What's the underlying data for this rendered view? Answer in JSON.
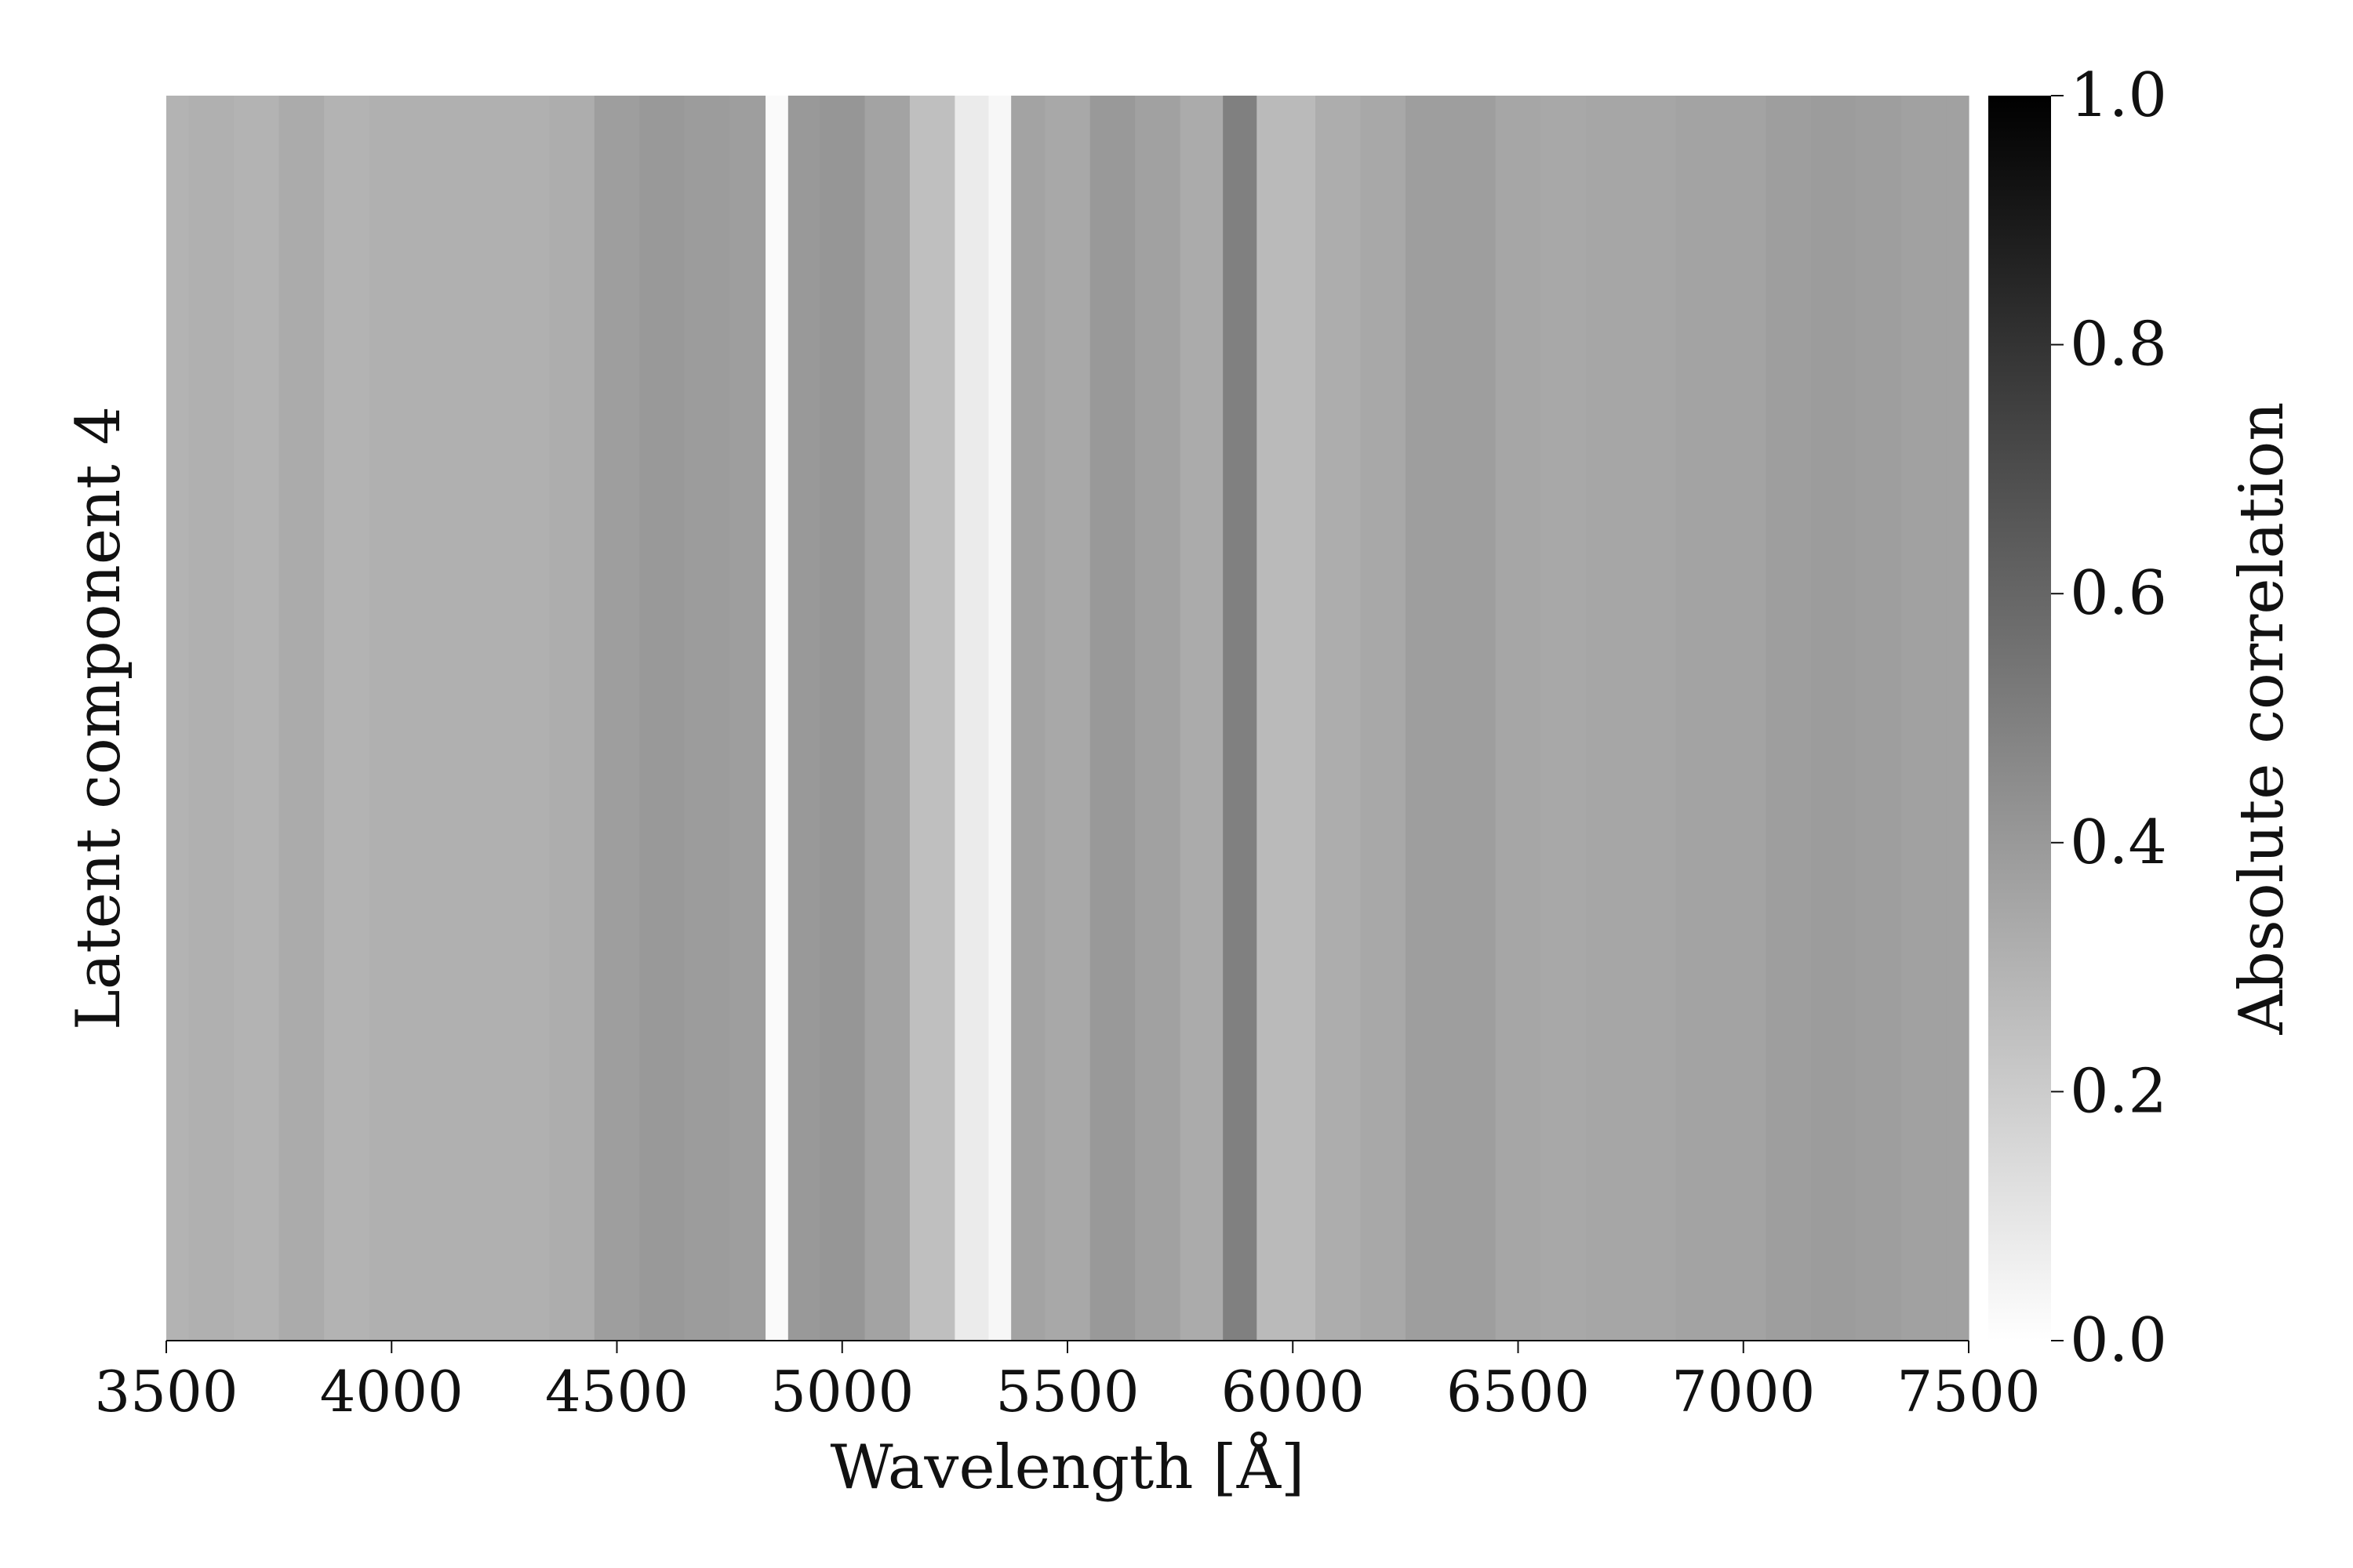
{
  "chart_data": {
    "type": "heatmap",
    "xlabel": "Wavelength [Å]",
    "ylabel": "Latent component 4",
    "xlim": [
      3500,
      7500
    ],
    "x_ticks": [
      "3500",
      "4000",
      "4500",
      "5000",
      "5500",
      "6000",
      "6500",
      "7000",
      "7500"
    ],
    "colorbar": {
      "label": "Absolute correlation",
      "range": [
        0.0,
        1.0
      ],
      "ticks": [
        "0.0",
        "0.2",
        "0.4",
        "0.6",
        "0.8",
        "1.0"
      ],
      "colormap": "Greys",
      "low_color": "#ffffff",
      "high_color": "#000000"
    },
    "series": [
      {
        "name": "Latent component 4",
        "wavelength": [
          3500,
          3600,
          3700,
          3800,
          3900,
          4000,
          4100,
          4200,
          4300,
          4400,
          4500,
          4600,
          4700,
          4800,
          4860,
          4900,
          5000,
          5100,
          5200,
          5300,
          5350,
          5400,
          5500,
          5600,
          5700,
          5800,
          5890,
          5950,
          6000,
          6100,
          6200,
          6300,
          6400,
          6500,
          6600,
          6700,
          6800,
          6900,
          7000,
          7100,
          7200,
          7300,
          7400,
          7500
        ],
        "absolute_correlation": [
          0.3,
          0.31,
          0.3,
          0.33,
          0.3,
          0.31,
          0.31,
          0.31,
          0.31,
          0.32,
          0.38,
          0.4,
          0.39,
          0.38,
          0.02,
          0.4,
          0.41,
          0.36,
          0.25,
          0.08,
          0.03,
          0.36,
          0.34,
          0.4,
          0.37,
          0.33,
          0.5,
          0.27,
          0.27,
          0.32,
          0.34,
          0.38,
          0.38,
          0.35,
          0.34,
          0.35,
          0.35,
          0.36,
          0.36,
          0.38,
          0.39,
          0.38,
          0.37,
          0.37
        ]
      }
    ]
  }
}
